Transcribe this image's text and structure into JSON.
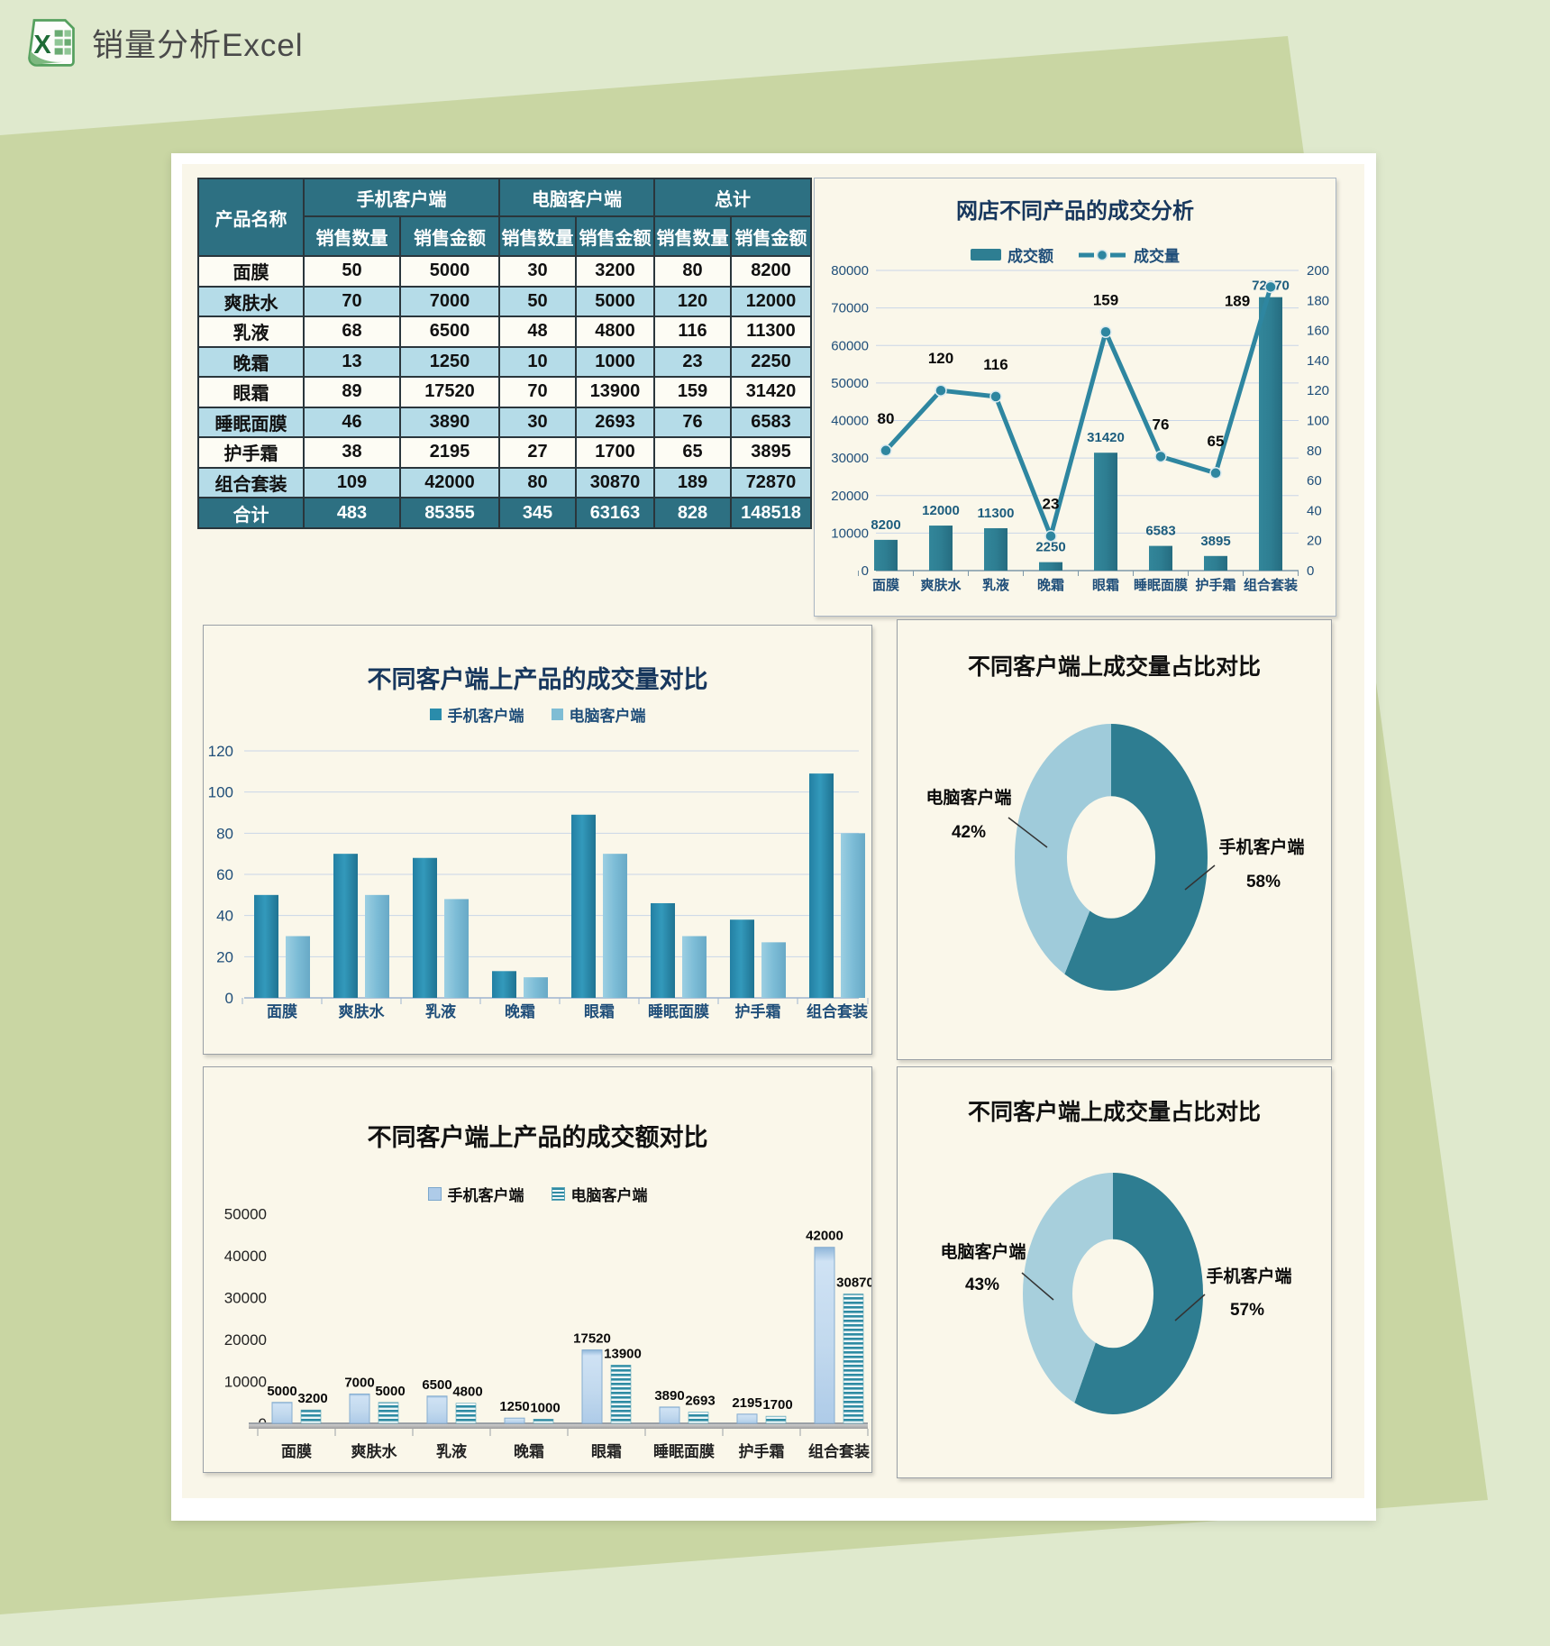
{
  "page": {
    "title": "销量分析Excel",
    "icon": "excel-icon"
  },
  "colors": {
    "page_bg": "#dfe9cd",
    "backdrop_sheet": "#c9d6a3",
    "card_bg": "#ffffff",
    "sheet_bg": "#f9f6e9",
    "panel_bg": "#faf7ea",
    "table_header_bg": "#2d7082",
    "table_alt_row": "#b5dce8",
    "bar_teal": "#2e7e92",
    "line_teal": "#2e86a0",
    "series_teal": "#2a8cab",
    "series_light_blue": "#7fbdd4",
    "amount_bar_blue": "#aecbe8",
    "amount_bar_stripe": "#2e8ba3",
    "donut_dark": "#2e7d91",
    "donut_light": "#9fcbda",
    "title_navy": "#17375d",
    "axis_navy": "#1f4e79"
  },
  "table": {
    "product_col_header": "产品名称",
    "group_headers": [
      "手机客户端",
      "电脑客户端",
      "总计"
    ],
    "sub_headers": [
      "销售数量",
      "销售金额",
      "销售数量",
      "销售金额",
      "销售数量",
      "销售金额"
    ],
    "rows": [
      {
        "name": "面膜",
        "values": [
          50,
          5000,
          30,
          3200,
          80,
          8200
        ]
      },
      {
        "name": "爽肤水",
        "values": [
          70,
          7000,
          50,
          5000,
          120,
          12000
        ]
      },
      {
        "name": "乳液",
        "values": [
          68,
          6500,
          48,
          4800,
          116,
          11300
        ]
      },
      {
        "name": "晚霜",
        "values": [
          13,
          1250,
          10,
          1000,
          23,
          2250
        ]
      },
      {
        "name": "眼霜",
        "values": [
          89,
          17520,
          70,
          13900,
          159,
          31420
        ]
      },
      {
        "name": "睡眠面膜",
        "values": [
          46,
          3890,
          30,
          2693,
          76,
          6583
        ]
      },
      {
        "name": "护手霜",
        "values": [
          38,
          2195,
          27,
          1700,
          65,
          3895
        ]
      },
      {
        "name": "组合套装",
        "values": [
          109,
          42000,
          80,
          30870,
          189,
          72870
        ]
      }
    ],
    "total_row": {
      "name": "合计",
      "values": [
        483,
        85355,
        345,
        63163,
        828,
        148518
      ]
    }
  },
  "chart_data": [
    {
      "type": "combo",
      "title": "网店不同产品的成交分析",
      "categories": [
        "面膜",
        "爽肤水",
        "乳液",
        "晚霜",
        "眼霜",
        "睡眠面膜",
        "护手霜",
        "组合套装"
      ],
      "series": [
        {
          "name": "成交额",
          "chart": "bar",
          "axis": "left",
          "values": [
            8200,
            12000,
            11300,
            2250,
            31420,
            6583,
            3895,
            72870
          ]
        },
        {
          "name": "成交量",
          "chart": "line",
          "axis": "right",
          "values": [
            80,
            120,
            116,
            23,
            159,
            76,
            65,
            189
          ]
        }
      ],
      "left_axis": {
        "min": 0,
        "max": 80000,
        "step": 10000
      },
      "right_axis": {
        "min": 0,
        "max": 200,
        "step": 20
      },
      "grid": true,
      "legend_position": "top",
      "data_labels": true
    },
    {
      "type": "bar",
      "title": "不同客户端上产品的成交量对比",
      "categories": [
        "面膜",
        "爽肤水",
        "乳液",
        "晚霜",
        "眼霜",
        "睡眠面膜",
        "护手霜",
        "组合套装"
      ],
      "series": [
        {
          "name": "手机客户端",
          "values": [
            50,
            70,
            68,
            13,
            89,
            46,
            38,
            109
          ]
        },
        {
          "name": "电脑客户端",
          "values": [
            30,
            50,
            48,
            10,
            70,
            30,
            27,
            80
          ]
        }
      ],
      "ylim": [
        0,
        120
      ],
      "ystep": 20,
      "grid": true,
      "legend_position": "top",
      "data_labels": false
    },
    {
      "type": "pie",
      "subtype": "donut",
      "title": "不同客户端上成交量占比对比",
      "slices": [
        {
          "label": "手机客户端",
          "percent": 58
        },
        {
          "label": "电脑客户端",
          "percent": 42
        }
      ]
    },
    {
      "type": "bar",
      "title": "不同客户端上产品的成交额对比",
      "categories": [
        "面膜",
        "爽肤水",
        "乳液",
        "晚霜",
        "眼霜",
        "睡眠面膜",
        "护手霜",
        "组合套装"
      ],
      "series": [
        {
          "name": "手机客户端",
          "values": [
            5000,
            7000,
            6500,
            1250,
            17520,
            3890,
            2195,
            42000
          ]
        },
        {
          "name": "电脑客户端",
          "values": [
            3200,
            5000,
            4800,
            1000,
            13900,
            2693,
            1700,
            30870
          ]
        }
      ],
      "ylim": [
        0,
        50000
      ],
      "ystep": 10000,
      "grid": false,
      "legend_position": "top",
      "data_labels": true
    },
    {
      "type": "pie",
      "subtype": "donut",
      "title": "不同客户端上成交量占比对比",
      "slices": [
        {
          "label": "手机客户端",
          "percent": 57
        },
        {
          "label": "电脑客户端",
          "percent": 43
        }
      ]
    }
  ]
}
